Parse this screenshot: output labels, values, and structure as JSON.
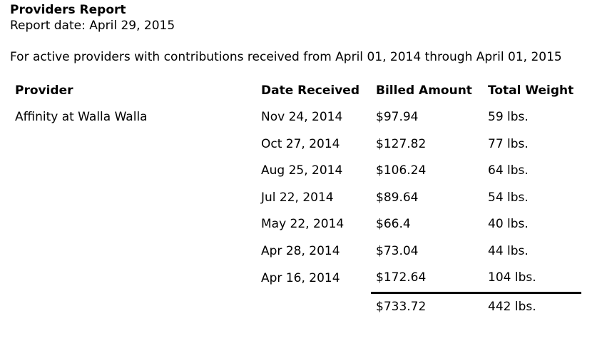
{
  "report": {
    "title": "Providers Report",
    "report_date": "Report date: April 29, 2015",
    "summary": "For active providers with contributions received from April 01, 2014 through April 01, 2015"
  },
  "table": {
    "headers": {
      "provider": "Provider",
      "date_received": "Date Received",
      "billed_amount": "Billed Amount",
      "total_weight": "Total Weight"
    },
    "provider_name": "Affinity at Walla Walla",
    "rows": [
      {
        "date": "Nov 24, 2014",
        "amount": "$97.94",
        "weight": "59 lbs."
      },
      {
        "date": "Oct 27, 2014",
        "amount": "$127.82",
        "weight": "77 lbs."
      },
      {
        "date": "Aug 25, 2014",
        "amount": "$106.24",
        "weight": "64 lbs."
      },
      {
        "date": "Jul 22, 2014",
        "amount": "$89.64",
        "weight": "54 lbs."
      },
      {
        "date": "May 22, 2014",
        "amount": "$66.4",
        "weight": "40 lbs."
      },
      {
        "date": "Apr 28, 2014",
        "amount": "$73.04",
        "weight": "44 lbs."
      },
      {
        "date": "Apr 16, 2014",
        "amount": "$172.64",
        "weight": "104 lbs."
      }
    ],
    "totals": {
      "amount": "$733.72",
      "weight": "442 lbs."
    }
  }
}
